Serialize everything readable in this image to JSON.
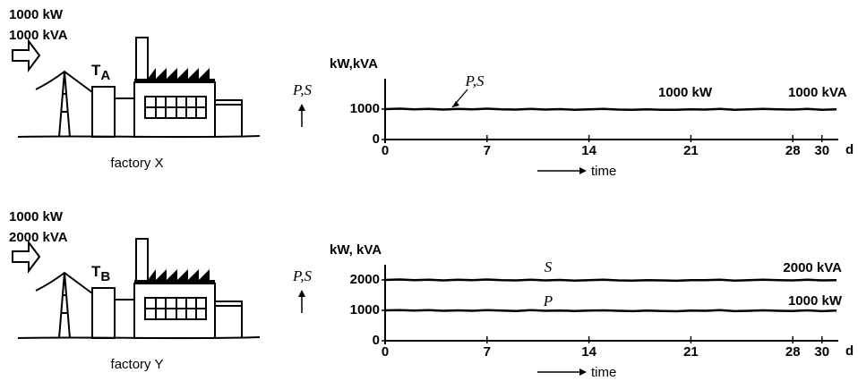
{
  "chart_data": [
    {
      "type": "line",
      "input_labels": [
        "1000 kW",
        "1000 kVA"
      ],
      "transformer": {
        "label": "T",
        "subscript": "A"
      },
      "caption": "factory X",
      "ylabel_symbol": "P,S",
      "ylabel": "kW,kVA",
      "xlabel": "time",
      "x_unit": "d",
      "x": [
        0,
        1,
        2,
        3,
        4,
        5,
        6,
        7,
        8,
        9,
        10,
        11,
        12,
        13,
        14,
        15,
        16,
        17,
        18,
        19,
        20,
        21,
        22,
        23,
        24,
        25,
        26,
        27,
        28,
        29,
        30,
        31
      ],
      "series": [
        {
          "name": "P,S",
          "color": "#000000",
          "values": [
            1000,
            1015,
            990,
            1010,
            985,
            1005,
            990,
            1015,
            990,
            985,
            1005,
            985,
            1000,
            980,
            995,
            1005,
            985,
            975,
            995,
            980,
            975,
            995,
            985,
            1010,
            980,
            990,
            1005,
            990,
            985,
            1005,
            980,
            990
          ]
        }
      ],
      "annotations": [
        "1000 kW",
        "1000 kVA"
      ],
      "xlim": [
        0,
        31
      ],
      "xticks": [
        0,
        7,
        14,
        21,
        28,
        30
      ],
      "ylim": [
        0,
        2000
      ],
      "yticks": [
        0,
        1000
      ]
    },
    {
      "type": "line",
      "input_labels": [
        "1000 kW",
        "2000 kVA"
      ],
      "transformer": {
        "label": "T",
        "subscript": "B"
      },
      "caption": "factory Y",
      "ylabel_symbol": "P,S",
      "ylabel": "kW, kVA",
      "xlabel": "time",
      "x_unit": "d",
      "x": [
        0,
        1,
        2,
        3,
        4,
        5,
        6,
        7,
        8,
        9,
        10,
        11,
        12,
        13,
        14,
        15,
        16,
        17,
        18,
        19,
        20,
        21,
        22,
        23,
        24,
        25,
        26,
        27,
        28,
        29,
        30,
        31
      ],
      "series": [
        {
          "name": "S",
          "color": "#000000",
          "values": [
            2000,
            2015,
            1990,
            2010,
            1985,
            2005,
            1990,
            2015,
            1995,
            1985,
            2005,
            1985,
            2000,
            1980,
            1995,
            2010,
            1985,
            1980,
            1995,
            1985,
            1975,
            1995,
            1990,
            2010,
            1980,
            1990,
            2005,
            1990,
            1985,
            2005,
            1985,
            1995
          ]
        },
        {
          "name": "P",
          "color": "#000000",
          "values": [
            1000,
            1010,
            990,
            1005,
            985,
            1000,
            985,
            1010,
            990,
            980,
            1005,
            985,
            995,
            980,
            990,
            1000,
            985,
            975,
            990,
            980,
            970,
            990,
            985,
            1005,
            975,
            985,
            1000,
            985,
            980,
            1000,
            975,
            990
          ]
        }
      ],
      "annotations": [
        "2000 kVA",
        "1000 kW"
      ],
      "xlim": [
        0,
        31
      ],
      "xticks": [
        0,
        7,
        14,
        21,
        28,
        30
      ],
      "ylim": [
        0,
        2500
      ],
      "yticks": [
        0,
        1000,
        2000
      ]
    }
  ]
}
